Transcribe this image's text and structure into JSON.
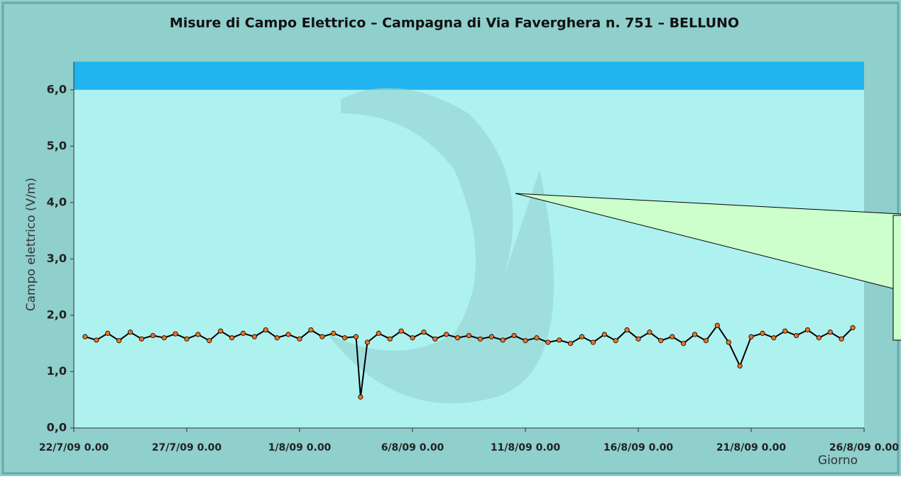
{
  "chart_data": {
    "type": "line",
    "title": "Misure di Campo Elettrico – Campagna di Via Faverghera n. 751 – BELLUNO",
    "y_label": "Campo elettrico (V/m)",
    "x_label": "Giorno",
    "xlim": [
      0,
      35
    ],
    "xticks": [
      {
        "value": 0,
        "label": "22/7/09 0.00"
      },
      {
        "value": 5,
        "label": "27/7/09 0.00"
      },
      {
        "value": 10,
        "label": "1/8/09 0.00"
      },
      {
        "value": 15,
        "label": "6/8/09 0.00"
      },
      {
        "value": 20,
        "label": "11/8/09 0.00"
      },
      {
        "value": 25,
        "label": "16/8/09 0.00"
      },
      {
        "value": 30,
        "label": "21/8/09 0.00"
      },
      {
        "value": 35,
        "label": "26/8/09 0.00"
      }
    ],
    "ylim": [
      0,
      6.5
    ],
    "yticks": [
      {
        "value": 0,
        "label": "0,0"
      },
      {
        "value": 1,
        "label": "1,0"
      },
      {
        "value": 2,
        "label": "2,0"
      },
      {
        "value": 3,
        "label": "3,0"
      },
      {
        "value": 4,
        "label": "4,0"
      },
      {
        "value": 5,
        "label": "5,0"
      },
      {
        "value": 6,
        "label": "6,0"
      }
    ],
    "band": [
      6,
      6.5
    ],
    "band_color": "#22b4ee",
    "x": [
      0.5,
      1,
      1.5,
      2,
      2.5,
      3,
      3.5,
      4,
      4.5,
      5,
      5.5,
      6,
      6.5,
      7,
      7.5,
      8,
      8.5,
      9,
      9.5,
      10,
      10.5,
      11,
      11.5,
      12,
      12.5,
      12.7,
      13,
      13.5,
      14,
      14.5,
      15,
      15.5,
      16,
      16.5,
      17,
      17.5,
      18,
      18.5,
      19,
      19.5,
      20,
      20.5,
      21,
      21.5,
      22,
      22.5,
      23,
      23.5,
      24,
      24.5,
      25,
      25.5,
      26,
      26.5,
      27,
      27.5,
      28,
      28.5,
      29,
      29.5,
      30,
      30.5,
      31,
      31.5,
      32,
      32.5,
      33,
      33.5,
      34,
      34.5
    ],
    "series": [
      {
        "color": "#f07020",
        "line_color": "#000000",
        "values": [
          1.62,
          1.56,
          1.68,
          1.55,
          1.7,
          1.58,
          1.64,
          1.6,
          1.67,
          1.58,
          1.66,
          1.55,
          1.72,
          1.6,
          1.68,
          1.62,
          1.74,
          1.6,
          1.66,
          1.58,
          1.74,
          1.62,
          1.68,
          1.6,
          1.62,
          0.55,
          1.52,
          1.68,
          1.58,
          1.72,
          1.6,
          1.7,
          1.58,
          1.66,
          1.6,
          1.64,
          1.58,
          1.62,
          1.56,
          1.64,
          1.55,
          1.6,
          1.52,
          1.56,
          1.5,
          1.62,
          1.52,
          1.66,
          1.55,
          1.74,
          1.58,
          1.7,
          1.55,
          1.62,
          1.5,
          1.66,
          1.55,
          1.82,
          1.52,
          1.1,
          1.62,
          1.68,
          1.6,
          1.72,
          1.64,
          1.74,
          1.6,
          1.7,
          1.58,
          1.78
        ]
      }
    ]
  }
}
